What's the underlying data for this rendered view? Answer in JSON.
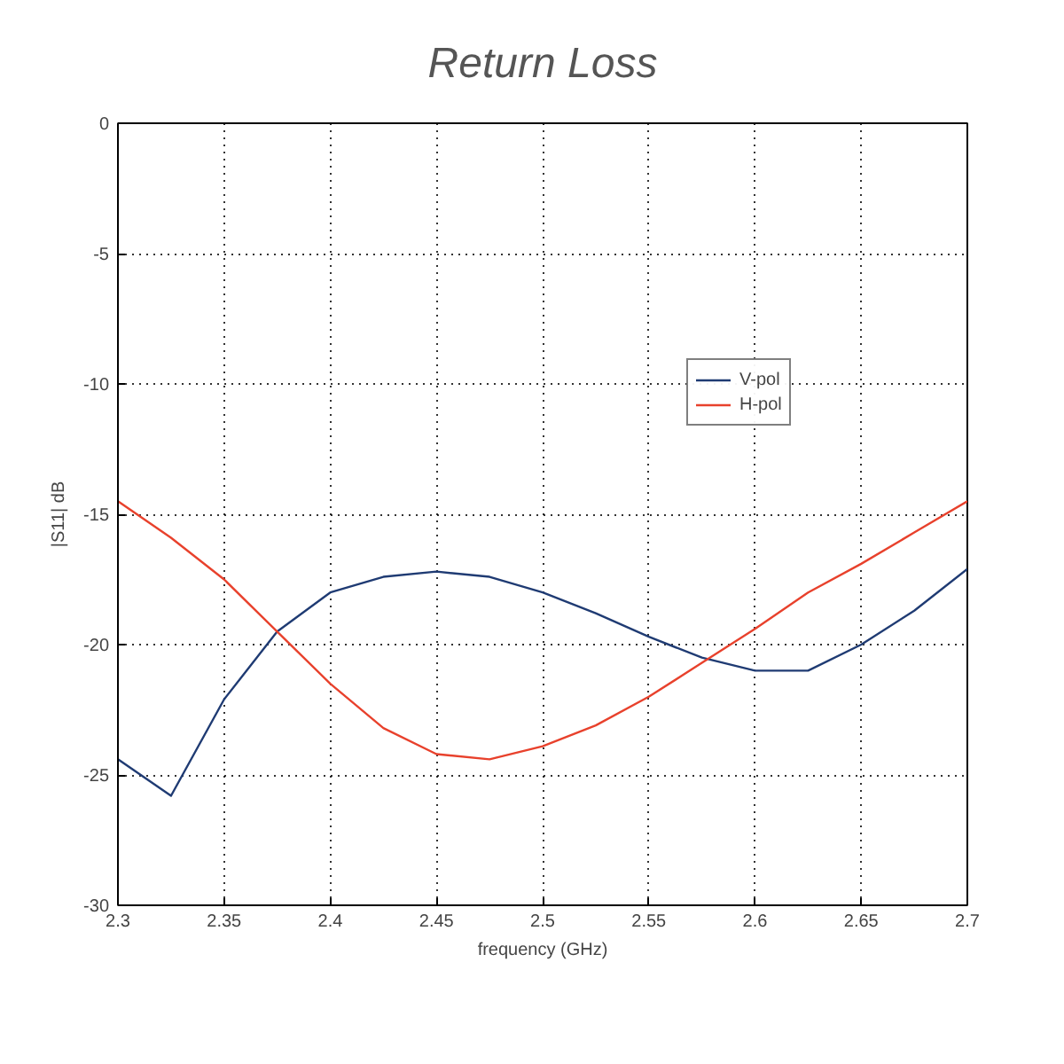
{
  "chart_data": {
    "type": "line",
    "title": "Return Loss",
    "xlabel": "frequency (GHz)",
    "ylabel": "|S11| dB",
    "x": [
      2.3,
      2.325,
      2.35,
      2.375,
      2.4,
      2.425,
      2.45,
      2.475,
      2.5,
      2.525,
      2.55,
      2.575,
      2.6,
      2.625,
      2.65,
      2.675,
      2.7
    ],
    "series": [
      {
        "name": "V-pol",
        "color": "#1f3b73",
        "values": [
          -24.4,
          -25.8,
          -22.1,
          -19.5,
          -18.0,
          -17.4,
          -17.2,
          -17.4,
          -18.0,
          -18.8,
          -19.7,
          -20.5,
          -21.0,
          -21.0,
          -20.0,
          -18.7,
          -17.1
        ]
      },
      {
        "name": "H-pol",
        "color": "#e8412c",
        "values": [
          -14.5,
          -15.9,
          -17.5,
          -19.5,
          -21.5,
          -23.2,
          -24.2,
          -24.4,
          -23.9,
          -23.1,
          -22.0,
          -20.7,
          -19.4,
          -18.0,
          -16.9,
          -15.7,
          -14.5
        ]
      }
    ],
    "xlim": [
      2.3,
      2.7
    ],
    "xticks": [
      2.3,
      2.35,
      2.4,
      2.45,
      2.5,
      2.55,
      2.6,
      2.65,
      2.7
    ],
    "ylim": [
      -30,
      0
    ],
    "yticks": [
      -30,
      -25,
      -20,
      -15,
      -10,
      -5,
      0
    ],
    "grid": true,
    "legend": "top right",
    "line_style": "solid"
  }
}
